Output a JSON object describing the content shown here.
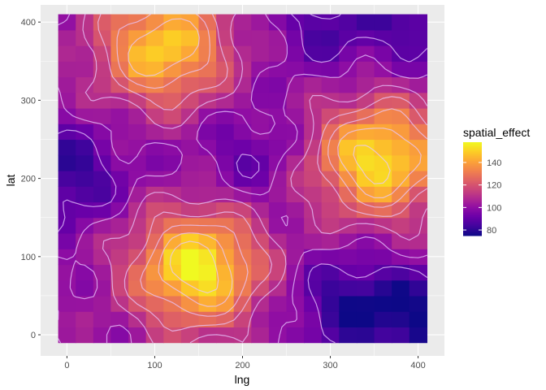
{
  "chart_data": {
    "type": "heatmap",
    "xlabel": "lng",
    "ylabel": "lat",
    "x_ticks": [
      0,
      100,
      200,
      300,
      400
    ],
    "y_ticks": [
      0,
      100,
      200,
      300,
      400
    ],
    "xlim": [
      -30,
      430
    ],
    "ylim": [
      -27,
      422
    ],
    "grid": true,
    "cell_size": 20,
    "tile_x_range": [
      0,
      400
    ],
    "tile_y_range": [
      0,
      400
    ],
    "colormap": "plasma",
    "legend": {
      "title": "spatial_effect",
      "position": "right",
      "breaks": [
        80,
        100,
        120,
        140
      ],
      "range": [
        75,
        158
      ]
    },
    "hotspots": [
      {
        "x": 110,
        "y": 368,
        "peak": 150
      },
      {
        "x": 148,
        "y": 85,
        "peak": 158
      },
      {
        "x": 355,
        "y": 225,
        "peak": 155
      }
    ],
    "coldspots": [
      {
        "x": 0,
        "y": 205,
        "value": 80
      },
      {
        "x": 320,
        "y": 40,
        "value": 80
      },
      {
        "x": 400,
        "y": 20,
        "value": 78
      },
      {
        "x": 410,
        "y": 410,
        "value": 82
      },
      {
        "x": 300,
        "y": 395,
        "value": 86
      },
      {
        "x": 210,
        "y": 230,
        "value": 90
      }
    ],
    "baseline": 100,
    "contour_levels": [
      90,
      100,
      110,
      120,
      130,
      140,
      150
    ]
  }
}
